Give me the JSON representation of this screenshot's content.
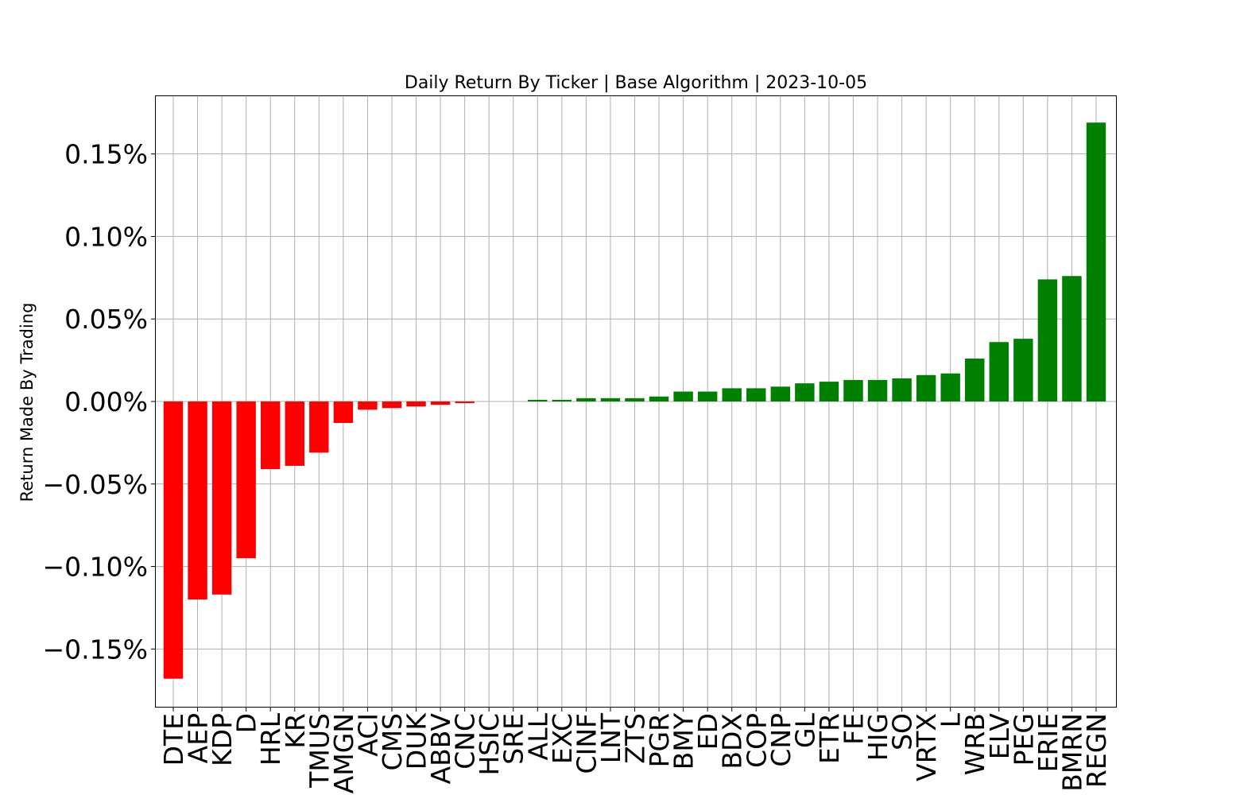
{
  "chart_data": {
    "type": "bar",
    "title": "Daily Return By Ticker | Base Algorithm | 2023-10-05",
    "xlabel": "",
    "ylabel": "Return Made By Trading",
    "ylim": [
      -0.185,
      0.185
    ],
    "y_ticks": [
      -0.15,
      -0.1,
      -0.05,
      0.0,
      0.05,
      0.1,
      0.15
    ],
    "y_tick_labels": [
      "−0.15%",
      "−0.10%",
      "−0.05%",
      "0.00%",
      "0.05%",
      "0.10%",
      "0.15%"
    ],
    "grid": true,
    "positive_color": "#008000",
    "negative_color": "#ff0000",
    "categories": [
      "DTE",
      "AEP",
      "KDP",
      "D",
      "HRL",
      "KR",
      "TMUS",
      "AMGN",
      "ACI",
      "CMS",
      "DUK",
      "ABBV",
      "CNC",
      "HSIC",
      "SRE",
      "ALL",
      "EXC",
      "CINF",
      "LNT",
      "ZTS",
      "PGR",
      "BMY",
      "ED",
      "BDX",
      "COP",
      "CNP",
      "GL",
      "ETR",
      "FE",
      "HIG",
      "SO",
      "VRTX",
      "L",
      "WRB",
      "ELV",
      "PEG",
      "ERIE",
      "BMRN",
      "REGN"
    ],
    "values": [
      -0.168,
      -0.12,
      -0.117,
      -0.095,
      -0.041,
      -0.039,
      -0.031,
      -0.013,
      -0.005,
      -0.004,
      -0.003,
      -0.002,
      -0.001,
      0.0,
      0.0,
      0.001,
      0.001,
      0.002,
      0.002,
      0.002,
      0.003,
      0.006,
      0.006,
      0.008,
      0.008,
      0.009,
      0.011,
      0.012,
      0.013,
      0.013,
      0.014,
      0.016,
      0.017,
      0.026,
      0.036,
      0.038,
      0.074,
      0.076,
      0.169
    ]
  }
}
